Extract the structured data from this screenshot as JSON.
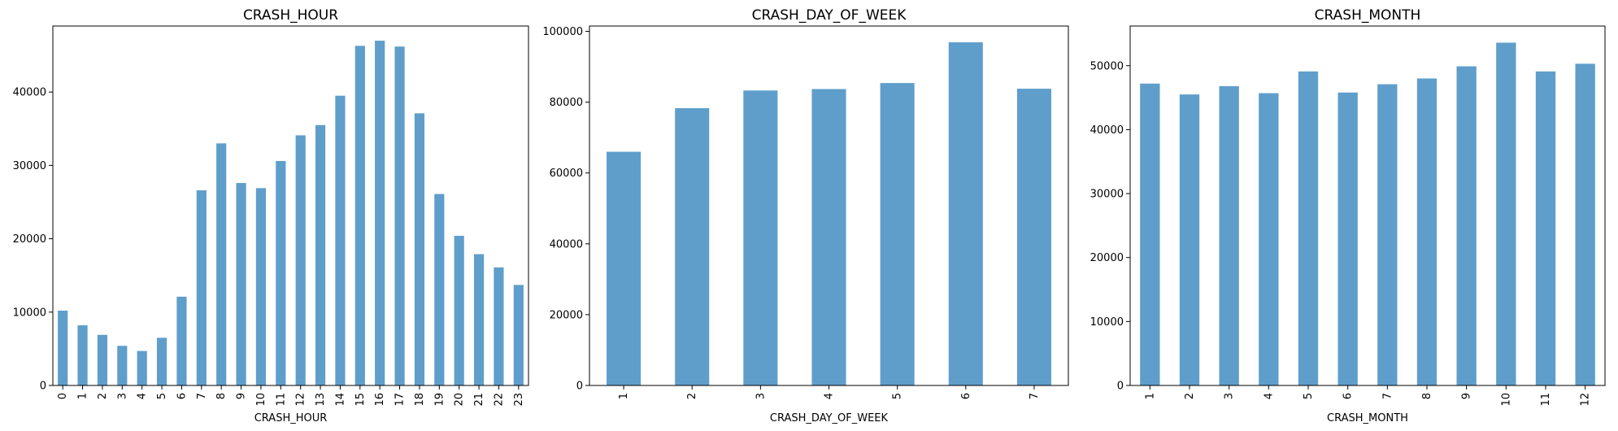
{
  "colors": {
    "bar": "#5f9ecb"
  },
  "chart_data": [
    {
      "type": "bar",
      "title": "CRASH_HOUR",
      "xlabel": "CRASH_HOUR",
      "ylabel": "",
      "ylim": [
        0,
        49000
      ],
      "yticks": [
        0,
        10000,
        20000,
        30000,
        40000
      ],
      "categories": [
        "0",
        "1",
        "2",
        "3",
        "4",
        "5",
        "6",
        "7",
        "8",
        "9",
        "10",
        "11",
        "12",
        "13",
        "14",
        "15",
        "16",
        "17",
        "18",
        "19",
        "20",
        "21",
        "22",
        "23"
      ],
      "values": [
        10200,
        8200,
        6900,
        5400,
        4700,
        6500,
        12100,
        26600,
        33000,
        27600,
        26900,
        30600,
        34100,
        35500,
        39500,
        46300,
        47000,
        46200,
        37100,
        26100,
        20400,
        17900,
        16100,
        13700
      ],
      "grid": false
    },
    {
      "type": "bar",
      "title": "CRASH_DAY_OF_WEEK",
      "xlabel": "CRASH_DAY_OF_WEEK",
      "ylabel": "",
      "ylim": [
        0,
        101500
      ],
      "yticks": [
        0,
        20000,
        40000,
        60000,
        80000,
        100000
      ],
      "categories": [
        "1",
        "2",
        "3",
        "4",
        "5",
        "6",
        "7"
      ],
      "values": [
        66000,
        78300,
        83300,
        83700,
        85400,
        96900,
        83800
      ],
      "grid": false
    },
    {
      "type": "bar",
      "title": "CRASH_MONTH",
      "xlabel": "CRASH_MONTH",
      "ylabel": "",
      "ylim": [
        0,
        56200
      ],
      "yticks": [
        0,
        10000,
        20000,
        30000,
        40000,
        50000
      ],
      "categories": [
        "1",
        "2",
        "3",
        "4",
        "5",
        "6",
        "7",
        "8",
        "9",
        "10",
        "11",
        "12"
      ],
      "values": [
        47200,
        45500,
        46800,
        45700,
        49100,
        45800,
        47100,
        48000,
        49900,
        53600,
        49100,
        50300
      ],
      "grid": false
    }
  ]
}
